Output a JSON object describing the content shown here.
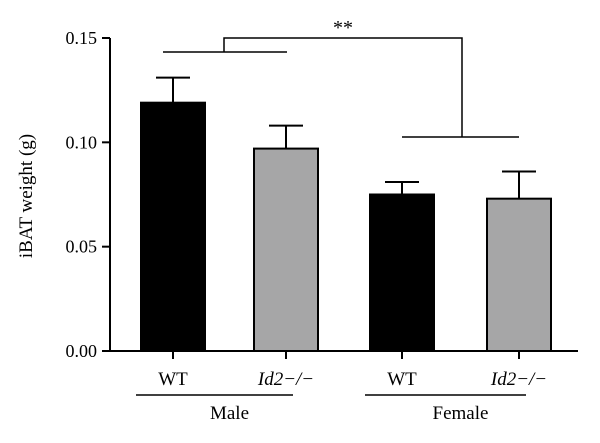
{
  "chart_data": {
    "type": "bar",
    "title": "",
    "xlabel": "",
    "ylabel": "iBAT weight (g)",
    "ylim": [
      0,
      0.15
    ],
    "yticks": [
      "0.00",
      "0.05",
      "0.10",
      "0.15"
    ],
    "categories": [
      "WT",
      "Id2−/−",
      "WT",
      "Id2−/−"
    ],
    "italic_categories": [
      false,
      true,
      false,
      true
    ],
    "groups": [
      {
        "label": "Male",
        "members": [
          0,
          1
        ]
      },
      {
        "label": "Female",
        "members": [
          2,
          3
        ]
      }
    ],
    "values": [
      0.119,
      0.097,
      0.075,
      0.073
    ],
    "errors": [
      0.012,
      0.011,
      0.006,
      0.013
    ],
    "bar_colors": [
      "#000000",
      "#a6a6a7",
      "#000000",
      "#a6a6a7"
    ],
    "significance": {
      "label": "**",
      "between": [
        "Male",
        "Female"
      ]
    },
    "grid": false,
    "legend": "none"
  }
}
